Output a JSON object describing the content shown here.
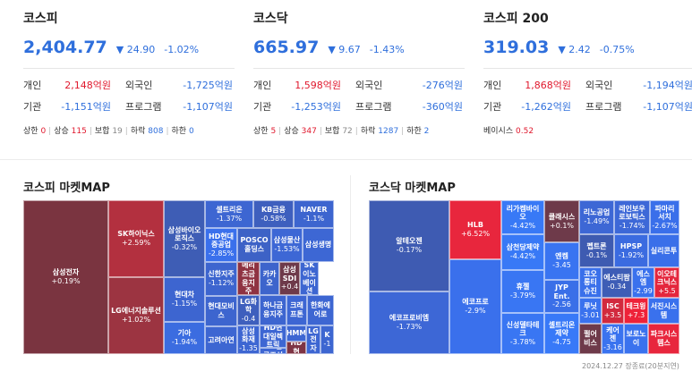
{
  "indices": [
    {
      "name": "코스피",
      "value": "2,404.77",
      "change": "▼ 24.90",
      "pct": "-1.02%",
      "investors": [
        {
          "label": "개인",
          "value": "2,148억원",
          "label2": "외국인",
          "value2": "-1,725억원"
        },
        {
          "label": "기관",
          "value": "-1,151억원",
          "label2": "프로그램",
          "value2": "-1,107억원"
        }
      ],
      "breadth": [
        {
          "label": "상한",
          "value": "0",
          "color": "red"
        },
        {
          "label": "상승",
          "value": "115",
          "color": "red"
        },
        {
          "label": "보합",
          "value": "19",
          "color": "gray"
        },
        {
          "label": "하락",
          "value": "808",
          "color": "blue"
        },
        {
          "label": "하한",
          "value": "0",
          "color": "blue"
        }
      ]
    },
    {
      "name": "코스닥",
      "value": "665.97",
      "change": "▼ 9.67",
      "pct": "-1.43%",
      "investors": [
        {
          "label": "개인",
          "value": "1,598억원",
          "label2": "외국인",
          "value2": "-276억원"
        },
        {
          "label": "기관",
          "value": "-1,253억원",
          "label2": "프로그램",
          "value2": "-360억원"
        }
      ],
      "breadth": [
        {
          "label": "상한",
          "value": "5",
          "color": "red"
        },
        {
          "label": "상승",
          "value": "347",
          "color": "red"
        },
        {
          "label": "보합",
          "value": "72",
          "color": "gray"
        },
        {
          "label": "하락",
          "value": "1287",
          "color": "blue"
        },
        {
          "label": "하한",
          "value": "2",
          "color": "blue"
        }
      ]
    },
    {
      "name": "코스피 200",
      "value": "319.03",
      "change": "▼ 2.42",
      "pct": "-0.75%",
      "investors": [
        {
          "label": "개인",
          "value": "1,868억원",
          "label2": "외국인",
          "value2": "-1,194억원"
        },
        {
          "label": "기관",
          "value": "-1,262억원",
          "label2": "프로그램",
          "value2": "-1,107억원"
        }
      ],
      "basis": {
        "label": "베이시스",
        "value": "0.52"
      }
    }
  ],
  "maps": [
    {
      "title": "코스피 마켓MAP",
      "tiles": [
        {
          "name": "삼성전자",
          "pct": "+0.19%",
          "color": "#7a3440"
        },
        {
          "name": "SK하이닉스",
          "pct": "+2.59%",
          "color": "#b3303f"
        },
        {
          "name": "LG에너지솔루션",
          "pct": "+1.02%",
          "color": "#9c3441"
        },
        {
          "name": "삼성바이오로직스",
          "pct": "-0.32%",
          "color": "#3e5db5"
        },
        {
          "name": "현대차",
          "pct": "-1.15%",
          "color": "#3d65d0"
        },
        {
          "name": "기아",
          "pct": "-1.94%",
          "color": "#3b6ce0"
        },
        {
          "name": "셀트리온",
          "pct": "-1.37%",
          "color": "#3d66d2"
        },
        {
          "name": "KB금융",
          "pct": "-0.58%",
          "color": "#3e5fbe"
        },
        {
          "name": "NAVER",
          "pct": "-1.1%",
          "color": "#3d65cf"
        },
        {
          "name": "HD현대중공업",
          "pct": "-2.85%",
          "color": "#3a70ec"
        },
        {
          "name": "POSCO홀딩스",
          "pct": "",
          "color": "#3d62c6"
        },
        {
          "name": "삼성물산",
          "pct": "-1.53%",
          "color": "#3d67d5"
        },
        {
          "name": "삼성생명",
          "pct": "",
          "color": "#3d67d4"
        },
        {
          "name": "신한지주",
          "pct": "-1.12%",
          "color": "#3d65cf"
        },
        {
          "name": "메리츠금융지주",
          "pct": "",
          "color": "#8f3342"
        },
        {
          "name": "카카오",
          "pct": "",
          "color": "#3d64cc"
        },
        {
          "name": "삼성SDI",
          "pct": "+0.4",
          "color": "#6e3a4a"
        },
        {
          "name": "SK이노베이션",
          "pct": "",
          "color": "#3d66d1"
        },
        {
          "name": "현대모비스",
          "pct": "",
          "color": "#3d65cf"
        },
        {
          "name": "LG화학",
          "pct": "-0.4",
          "color": "#3e5fbd"
        },
        {
          "name": "하나금융지주",
          "pct": "",
          "color": "#3d65d0"
        },
        {
          "name": "크래프톤",
          "pct": "",
          "color": "#3d66d3"
        },
        {
          "name": "한화에어로",
          "pct": "",
          "color": "#3d66d2"
        },
        {
          "name": "고려아연",
          "pct": "",
          "color": "#3d66d2"
        },
        {
          "name": "삼성화재",
          "pct": "-1.35",
          "color": "#3d66d2"
        },
        {
          "name": "HD현대일렉트릭",
          "pct": "",
          "color": "#3d66d3"
        },
        {
          "name": "HD한국조선",
          "pct": "",
          "color": "#3d66d3"
        },
        {
          "name": "HMM",
          "pct": "",
          "color": "#3d66d2"
        },
        {
          "name": "HD현",
          "pct": "",
          "color": "#7e3444"
        },
        {
          "name": "LG전자",
          "pct": "",
          "color": "#3d66d2"
        },
        {
          "name": "K",
          "pct": "-1",
          "color": "#3d66d1"
        }
      ]
    },
    {
      "title": "코스닥 마켓MAP",
      "tiles": [
        {
          "name": "알테오젠",
          "pct": "-0.17%",
          "color": "#3e5bb2"
        },
        {
          "name": "에코프로비엠",
          "pct": "-1.73%",
          "color": "#3d67d6"
        },
        {
          "name": "HLB",
          "pct": "+6.52%",
          "color": "#e8263d"
        },
        {
          "name": "에코프로",
          "pct": "-2.9%",
          "color": "#3a70ec"
        },
        {
          "name": "리가켐바이오",
          "pct": "-4.42%",
          "color": "#3879f6"
        },
        {
          "name": "삼천당제약",
          "pct": "-4.42%",
          "color": "#3879f6"
        },
        {
          "name": "휴젤",
          "pct": "-3.79%",
          "color": "#3976f3"
        },
        {
          "name": "신성델타테크",
          "pct": "-3.78%",
          "color": "#3976f3"
        },
        {
          "name": "클래시스",
          "pct": "+0.1%",
          "color": "#6e3a4a"
        },
        {
          "name": "리노공업",
          "pct": "-1.49%",
          "color": "#3d67d5"
        },
        {
          "name": "레인보우로보틱스",
          "pct": "-1.74%",
          "color": "#3d68d7"
        },
        {
          "name": "파마리서치",
          "pct": "-2.67%",
          "color": "#3a6fea"
        },
        {
          "name": "엔켐",
          "pct": "-3.45",
          "color": "#3974f1"
        },
        {
          "name": "펩트론",
          "pct": "-0.1%",
          "color": "#3e5bb1"
        },
        {
          "name": "HPSP",
          "pct": "-1.92%",
          "color": "#3b6be0"
        },
        {
          "name": "실리콘투",
          "pct": "",
          "color": "#3a6fe9"
        },
        {
          "name": "JYP Ent.",
          "pct": "-2.56",
          "color": "#3a6fe8"
        },
        {
          "name": "코오롱티슈진",
          "pct": "",
          "color": "#3a70ea"
        },
        {
          "name": "에스티팜",
          "pct": "-0.34",
          "color": "#3e5db6"
        },
        {
          "name": "에스엠",
          "pct": "-2.99",
          "color": "#3a71ed"
        },
        {
          "name": "이오테크닉스",
          "pct": "+5.5",
          "color": "#e4263d"
        },
        {
          "name": "셀트리온제약",
          "pct": "-4.75",
          "color": "#3879f8"
        },
        {
          "name": "루닛",
          "pct": "-3.01",
          "color": "#3a72ee"
        },
        {
          "name": "ISC",
          "pct": "+3.5",
          "color": "#d22a3e"
        },
        {
          "name": "테크윙",
          "pct": "+7.3",
          "color": "#ee2239"
        },
        {
          "name": "서진시스템",
          "pct": "",
          "color": "#3a71ed"
        },
        {
          "name": "펄어비스",
          "pct": "",
          "color": "#6e3a4a"
        },
        {
          "name": "케어젠",
          "pct": "-3.16",
          "color": "#3a73ef"
        },
        {
          "name": "보로노이",
          "pct": "",
          "color": "#3a72ee"
        },
        {
          "name": "파크시스템스",
          "pct": "",
          "color": "#e8263d"
        }
      ]
    }
  ],
  "footnote": "2024.12.27 장종료(20분지연)"
}
